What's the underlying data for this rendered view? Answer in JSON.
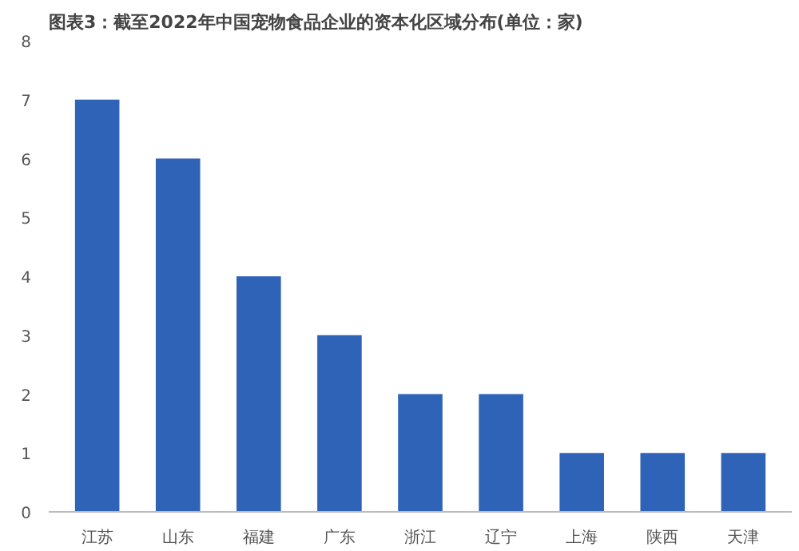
{
  "chart_data": {
    "type": "bar",
    "title": "图表3：截至2022年中国宠物食品企业的资本化区域分布(单位：家)",
    "categories": [
      "江苏",
      "山东",
      "福建",
      "广东",
      "浙江",
      "辽宁",
      "上海",
      "陕西",
      "天津"
    ],
    "values": [
      7,
      6,
      4,
      3,
      2,
      2,
      1,
      1,
      1
    ],
    "color": "#2f63b8",
    "ylim": [
      0,
      8
    ],
    "yticks": [
      0,
      1,
      2,
      3,
      4,
      5,
      6,
      7,
      8
    ],
    "grid": false
  }
}
